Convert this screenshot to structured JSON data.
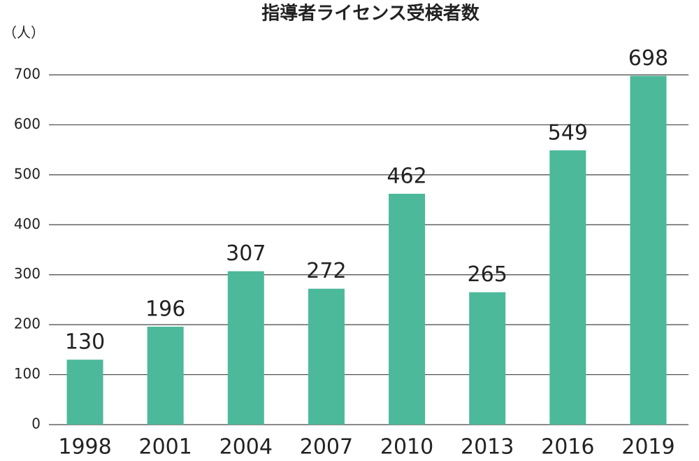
{
  "chart_data": {
    "type": "bar",
    "title": "指導者ライセンス受検者数",
    "y_unit": "（人）",
    "categories": [
      "1998",
      "2001",
      "2004",
      "2007",
      "2010",
      "2013",
      "2016",
      "2019"
    ],
    "values": [
      130,
      196,
      307,
      272,
      462,
      265,
      549,
      698
    ],
    "color": "#4cb99a",
    "ylim": [
      0,
      700
    ],
    "yticks": [
      0,
      100,
      200,
      300,
      400,
      500,
      600,
      700
    ],
    "grid": true
  }
}
